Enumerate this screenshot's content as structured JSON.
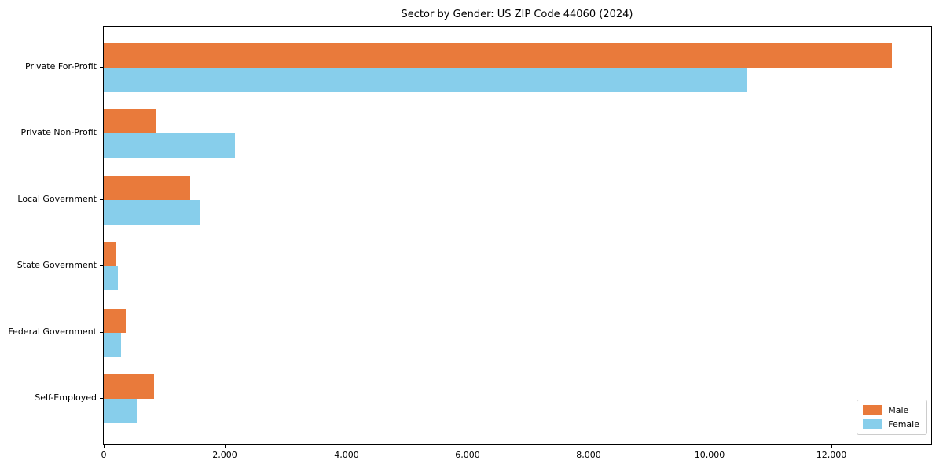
{
  "chart_data": {
    "type": "bar",
    "orientation": "horizontal",
    "title": "Sector by Gender: US ZIP Code 44060 (2024)",
    "categories": [
      "Private For-Profit",
      "Private Non-Profit",
      "Local Government",
      "State Government",
      "Federal Government",
      "Self-Employed"
    ],
    "series": [
      {
        "name": "Male",
        "color": "#e97a3b",
        "values": [
          13000,
          850,
          1420,
          195,
          360,
          830
        ]
      },
      {
        "name": "Female",
        "color": "#87ceeb",
        "values": [
          10600,
          2170,
          1600,
          235,
          285,
          545
        ]
      }
    ],
    "xlabel": "",
    "ylabel": "",
    "xlim": [
      0,
      13650
    ],
    "xticks": [
      0,
      2000,
      4000,
      6000,
      8000,
      10000,
      12000
    ],
    "xtick_labels": [
      "0",
      "2,000",
      "4,000",
      "6,000",
      "8,000",
      "10,000",
      "12,000"
    ],
    "grid": false,
    "legend_position": "lower right",
    "axis_color": "#000000"
  }
}
